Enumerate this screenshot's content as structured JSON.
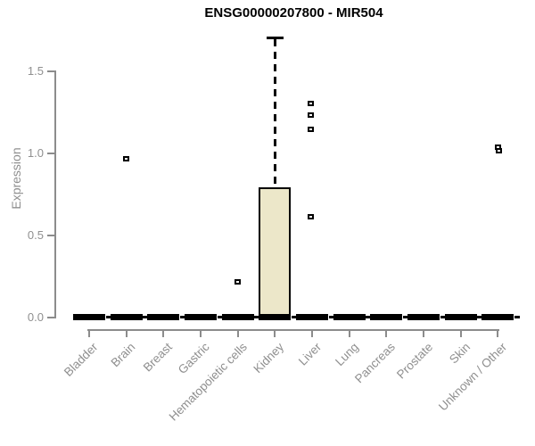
{
  "chart_data": {
    "type": "boxplot",
    "title": "ENSG00000207800 - MIR504",
    "xlabel": "",
    "ylabel": "Expression",
    "ylim": [
      0,
      1.7
    ],
    "yticks": [
      0.0,
      0.5,
      1.0,
      1.5
    ],
    "grid": false,
    "legend": null,
    "categories": [
      "Bladder",
      "Brain",
      "Breast",
      "Gastric",
      "Hematopoietic cells",
      "Kidney",
      "Liver",
      "Lung",
      "Pancreas",
      "Prostate",
      "Skin",
      "Unknown / Other"
    ],
    "boxes": [
      {
        "category": "Bladder",
        "whisker_low": 0,
        "q1": 0,
        "median": 0,
        "q3": 0,
        "whisker_high": 0
      },
      {
        "category": "Brain",
        "whisker_low": 0,
        "q1": 0,
        "median": 0,
        "q3": 0,
        "whisker_high": 0
      },
      {
        "category": "Breast",
        "whisker_low": 0,
        "q1": 0,
        "median": 0,
        "q3": 0,
        "whisker_high": 0
      },
      {
        "category": "Gastric",
        "whisker_low": 0,
        "q1": 0,
        "median": 0,
        "q3": 0,
        "whisker_high": 0
      },
      {
        "category": "Hematopoietic cells",
        "whisker_low": 0,
        "q1": 0,
        "median": 0,
        "q3": 0,
        "whisker_high": 0
      },
      {
        "category": "Kidney",
        "whisker_low": 0,
        "q1": 0,
        "median": 0,
        "q3": 0.79,
        "whisker_high": 1.7
      },
      {
        "category": "Liver",
        "whisker_low": 0,
        "q1": 0,
        "median": 0,
        "q3": 0,
        "whisker_high": 0
      },
      {
        "category": "Lung",
        "whisker_low": 0,
        "q1": 0,
        "median": 0,
        "q3": 0,
        "whisker_high": 0
      },
      {
        "category": "Pancreas",
        "whisker_low": 0,
        "q1": 0,
        "median": 0,
        "q3": 0,
        "whisker_high": 0
      },
      {
        "category": "Prostate",
        "whisker_low": 0,
        "q1": 0,
        "median": 0,
        "q3": 0,
        "whisker_high": 0
      },
      {
        "category": "Skin",
        "whisker_low": 0,
        "q1": 0,
        "median": 0,
        "q3": 0,
        "whisker_high": 0
      },
      {
        "category": "Unknown / Other",
        "whisker_low": 0,
        "q1": 0,
        "median": 0,
        "q3": 0,
        "whisker_high": 0
      }
    ],
    "outliers": [
      {
        "category": "Brain",
        "value": 0.96
      },
      {
        "category": "Hematopoietic cells",
        "value": 0.21
      },
      {
        "category": "Liver",
        "value": 1.3
      },
      {
        "category": "Liver",
        "value": 1.23
      },
      {
        "category": "Liver",
        "value": 1.14
      },
      {
        "category": "Liver",
        "value": 0.61
      },
      {
        "category": "Unknown / Other",
        "value": 1.03
      },
      {
        "category": "Unknown / Other",
        "value": 1.01
      }
    ],
    "colors": {
      "box_fill": "#ece7c9",
      "box_border": "#000000",
      "median": "#000000",
      "axis": "#8c8c8c",
      "axis_text": "#8f8f8f",
      "title_text": "#000000",
      "background": "#ffffff"
    }
  }
}
